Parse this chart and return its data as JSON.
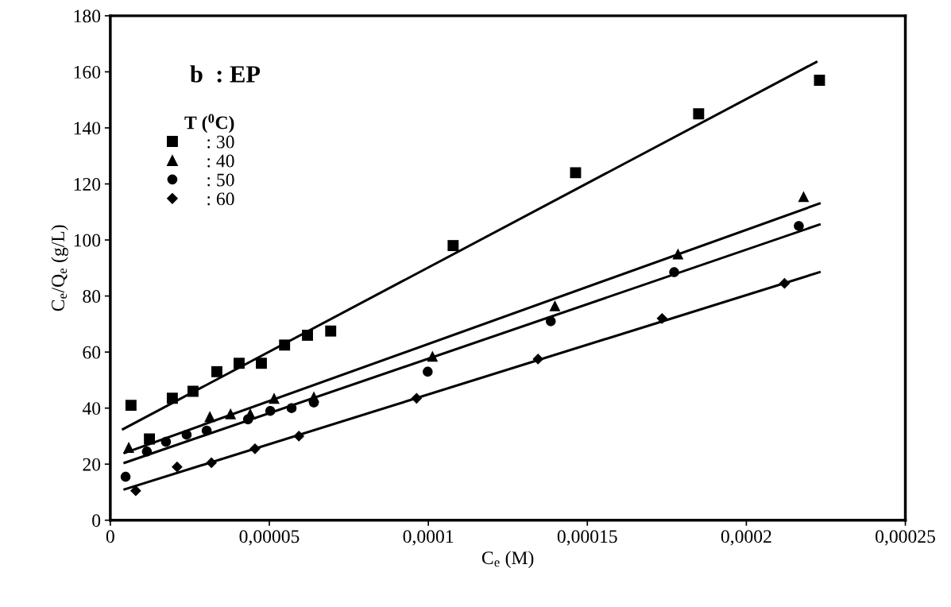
{
  "chart_data": {
    "type": "scatter",
    "xlabel": "C$_{e}$ (M)",
    "ylabel": "C$_{e}$/Q$_{e}$ (g/L)",
    "legend_title": "T ($^{0}$C)",
    "legend": "top left",
    "grid": false,
    "annotations": [
      "b  : EP"
    ],
    "xlim": [
      0,
      0.00025
    ],
    "xticks": [
      0,
      {
        "value": 5e-05,
        "label": "0,00005"
      },
      {
        "value": 0.0001,
        "label": "0,0001"
      },
      {
        "value": 0.00015,
        "label": "0,00015"
      },
      {
        "value": 0.0002,
        "label": "0,0002"
      },
      {
        "value": 0.00025,
        "label": "0,00025"
      }
    ],
    "ylim": [
      0,
      180
    ],
    "yticks": [
      0,
      20,
      40,
      60,
      80,
      100,
      120,
      140,
      160,
      180
    ],
    "series": [
      {
        "name": ": 30",
        "marker": "square",
        "color": "#000000",
        "x": [
          6.5e-06,
          1.23e-05,
          1.95e-05,
          2.6e-05,
          3.35e-05,
          4.05e-05,
          4.75e-05,
          5.48e-05,
          6.2e-05,
          6.93e-05,
          0.0001078,
          0.0001463,
          0.000185,
          0.000223
        ],
        "values": [
          41,
          29,
          43.5,
          46,
          53,
          56,
          56,
          62.5,
          66,
          67.5,
          98,
          124,
          145,
          157
        ]
      },
      {
        "name": ": 40",
        "marker": "triangle",
        "color": "#000000",
        "x": [
          5.8e-06,
          3.13e-05,
          3.78e-05,
          4.4e-05,
          5.15e-05,
          6.4e-05,
          0.0001013,
          0.0001398,
          0.0001785,
          0.000218
        ],
        "values": [
          26,
          37,
          38,
          38,
          43.5,
          44,
          58.5,
          76.5,
          95,
          115.5
        ]
      },
      {
        "name": ": 50",
        "marker": "circle",
        "color": "#000000",
        "x": [
          4.8e-06,
          1.15e-05,
          1.75e-05,
          2.4e-05,
          3.03e-05,
          4.33e-05,
          5.03e-05,
          5.7e-05,
          6.4e-05,
          9.98e-05,
          0.0001385,
          0.0001773,
          0.0002165
        ],
        "values": [
          15.5,
          24.5,
          28,
          30.5,
          32,
          36,
          39,
          40,
          42,
          53,
          71,
          88.5,
          105
        ]
      },
      {
        "name": ": 60",
        "marker": "diamond",
        "color": "#000000",
        "x": [
          8e-06,
          2.1e-05,
          3.18e-05,
          4.55e-05,
          5.93e-05,
          9.63e-05,
          0.0001345,
          0.0001735,
          0.000212
        ],
        "values": [
          10.5,
          19,
          20.5,
          25.5,
          30,
          43.5,
          57.5,
          72,
          84.5
        ]
      },
      {
        "type": "line",
        "color": "#000000",
        "line_style": "solid",
        "marker": "none",
        "x": [
          4e-06,
          0.000222
        ],
        "values": [
          32.5,
          163.5
        ]
      },
      {
        "type": "line",
        "color": "#000000",
        "line_style": "solid",
        "marker": "none",
        "x": [
          4.5e-06,
          0.000223
        ],
        "values": [
          24,
          113
        ]
      },
      {
        "type": "line",
        "color": "#000000",
        "line_style": "solid",
        "marker": "none",
        "x": [
          4.5e-06,
          0.000223
        ],
        "values": [
          20.5,
          105.5
        ]
      },
      {
        "type": "line",
        "color": "#000000",
        "line_style": "solid",
        "marker": "none",
        "x": [
          4.5e-06,
          0.000223
        ],
        "values": [
          11,
          88.5
        ]
      }
    ]
  }
}
